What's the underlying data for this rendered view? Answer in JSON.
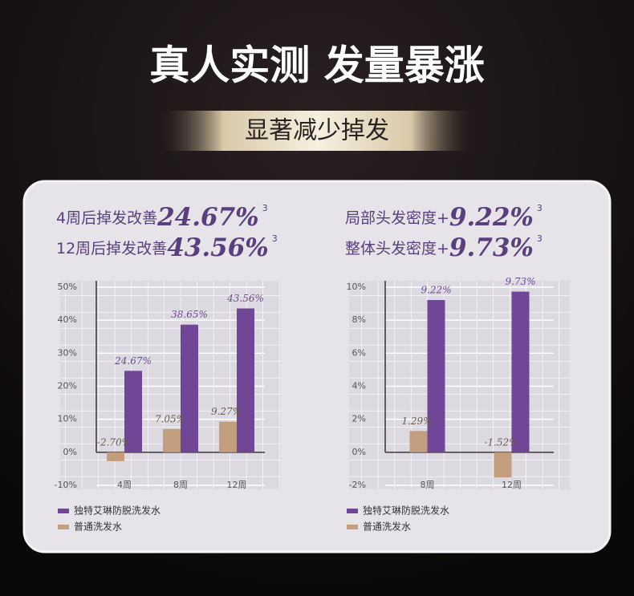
{
  "header": {
    "title": "真人实测 发量暴涨",
    "subtitle": "显著减少掉发"
  },
  "stats": [
    {
      "label": "4周后掉发改善",
      "value": "24.67%",
      "note": "3"
    },
    {
      "label": "12周后掉发改善",
      "value": "43.56%",
      "note": "3"
    },
    {
      "label": "局部头发密度+",
      "value": "9.22%",
      "note": "3"
    },
    {
      "label": "整体头发密度+",
      "value": "9.73%",
      "note": "3"
    }
  ],
  "chart_data": [
    {
      "type": "bar",
      "categories": [
        "4周",
        "8周",
        "12周"
      ],
      "series": [
        {
          "name": "独特艾琳防脱洗发水",
          "color": "#6f4796",
          "values": [
            24.67,
            38.65,
            43.56
          ],
          "value_labels": [
            "24.67%",
            "38.65%",
            "43.56%"
          ]
        },
        {
          "name": "普通洗发水",
          "color": "#c39e7e",
          "values": [
            -2.7,
            7.05,
            9.27
          ],
          "value_labels": [
            "-2.70%",
            "7.05%",
            "9.27%"
          ]
        }
      ],
      "ylim": [
        -10,
        50
      ],
      "yticks": [
        {
          "value": -10,
          "label": "-10%"
        },
        {
          "value": 0,
          "label": "0%"
        },
        {
          "value": 10,
          "label": "10%"
        },
        {
          "value": 20,
          "label": "20%"
        },
        {
          "value": 30,
          "label": "30%"
        },
        {
          "value": 40,
          "label": "40%"
        },
        {
          "value": 50,
          "label": "50%"
        }
      ],
      "grid": true
    },
    {
      "type": "bar",
      "categories": [
        "8周",
        "12周"
      ],
      "series": [
        {
          "name": "独特艾琳防脱洗发水",
          "color": "#6f4796",
          "values": [
            9.22,
            9.73
          ],
          "value_labels": [
            "9.22%",
            "9.73%"
          ]
        },
        {
          "name": "普通洗发水",
          "color": "#c39e7e",
          "values": [
            1.29,
            -1.52
          ],
          "value_labels": [
            "1.29%",
            "-1.52%"
          ]
        }
      ],
      "ylim": [
        -2,
        10
      ],
      "yticks": [
        {
          "value": -2,
          "label": "-2%"
        },
        {
          "value": 0,
          "label": "0%"
        },
        {
          "value": 2,
          "label": "2%"
        },
        {
          "value": 4,
          "label": "4%"
        },
        {
          "value": 6,
          "label": "6%"
        },
        {
          "value": 8,
          "label": "8%"
        },
        {
          "value": 10,
          "label": "10%"
        }
      ],
      "grid": true
    }
  ]
}
